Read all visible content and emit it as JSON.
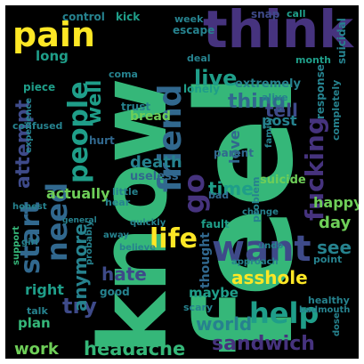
{
  "palette": {
    "background": "#000000",
    "frame": "#ffffff",
    "dark_purple": "#46337e",
    "purple": "#3e4a89",
    "blue": "#31688e",
    "teal": "#26828e",
    "green": "#1f9e89",
    "light_green": "#35b779",
    "lime": "#6ece58",
    "yellow": "#fde725"
  },
  "words": [
    {
      "text": "feel",
      "color": "#35b779"
    },
    {
      "text": "know",
      "color": "#35b779"
    },
    {
      "text": "think",
      "color": "#46337e"
    },
    {
      "text": "pain",
      "color": "#fde725"
    },
    {
      "text": "friend",
      "color": "#31688e"
    },
    {
      "text": "people",
      "color": "#1f9e89"
    },
    {
      "text": "need",
      "color": "#31688e"
    },
    {
      "text": "start",
      "color": "#31688e"
    },
    {
      "text": "want",
      "color": "#3e4a89"
    },
    {
      "text": "help",
      "color": "#1f9e89"
    },
    {
      "text": "life",
      "color": "#fde725"
    },
    {
      "text": "fucking",
      "color": "#46337e"
    },
    {
      "text": "go",
      "color": "#46337e"
    },
    {
      "text": "try",
      "color": "#3e4a89"
    },
    {
      "text": "live",
      "color": "#1f9e89"
    },
    {
      "text": "thing",
      "color": "#31688e"
    },
    {
      "text": "well",
      "color": "#1f9e89"
    },
    {
      "text": "attempt",
      "color": "#3e4a89"
    },
    {
      "text": "headache",
      "color": "#35b779"
    },
    {
      "text": "sandwich",
      "color": "#46337e"
    },
    {
      "text": "work",
      "color": "#6ece58"
    },
    {
      "text": "world",
      "color": "#26828e"
    },
    {
      "text": "asshole",
      "color": "#fde725"
    },
    {
      "text": "hate",
      "color": "#3e4a89"
    },
    {
      "text": "anymore",
      "color": "#26828e"
    },
    {
      "text": "time",
      "color": "#1f9e89"
    },
    {
      "text": "love",
      "color": "#31688e"
    },
    {
      "text": "death",
      "color": "#26828e"
    },
    {
      "text": "actually",
      "color": "#6ece58"
    },
    {
      "text": "tell",
      "color": "#3e4a89"
    },
    {
      "text": "see",
      "color": "#26828e"
    },
    {
      "text": "happy",
      "color": "#6ece58"
    },
    {
      "text": "day",
      "color": "#6ece58"
    },
    {
      "text": "plan",
      "color": "#35b779"
    },
    {
      "text": "right",
      "color": "#1f9e89"
    },
    {
      "text": "maybe",
      "color": "#1f9e89"
    },
    {
      "text": "thought",
      "color": "#31688e"
    },
    {
      "text": "post",
      "color": "#26828e"
    },
    {
      "text": "extremely",
      "color": "#26828e"
    },
    {
      "text": "long",
      "color": "#1f9e89"
    },
    {
      "text": "control",
      "color": "#26828e"
    },
    {
      "text": "kick",
      "color": "#1f9e89"
    },
    {
      "text": "week",
      "color": "#26828e"
    },
    {
      "text": "snap",
      "color": "#3e4a89"
    },
    {
      "text": "call",
      "color": "#1f9e89"
    },
    {
      "text": "suicidal",
      "color": "#26828e"
    },
    {
      "text": "escape",
      "color": "#26828e"
    },
    {
      "text": "lonely",
      "color": "#1f9e89"
    },
    {
      "text": "trust",
      "color": "#26828e"
    },
    {
      "text": "bread",
      "color": "#6ece58"
    },
    {
      "text": "useless",
      "color": "#31688e"
    },
    {
      "text": "parent",
      "color": "#31688e"
    },
    {
      "text": "suicide",
      "color": "#6ece58"
    },
    {
      "text": "hurt",
      "color": "#31688e"
    },
    {
      "text": "little",
      "color": "#26828e"
    },
    {
      "text": "hear",
      "color": "#26828e"
    },
    {
      "text": "bad",
      "color": "#31688e"
    },
    {
      "text": "fault",
      "color": "#1f9e89"
    },
    {
      "text": "coma",
      "color": "#26828e"
    },
    {
      "text": "deal",
      "color": "#26828e"
    },
    {
      "text": "alive",
      "color": "#26828e"
    },
    {
      "text": "month",
      "color": "#1f9e89"
    },
    {
      "text": "response",
      "color": "#26828e"
    },
    {
      "text": "completely",
      "color": "#26828e"
    },
    {
      "text": "piece",
      "color": "#1f9e89"
    },
    {
      "text": "confused",
      "color": "#26828e"
    },
    {
      "text": "experience",
      "color": "#26828e"
    },
    {
      "text": "probably",
      "color": "#26828e"
    },
    {
      "text": "believe",
      "color": "#26828e"
    },
    {
      "text": "quickly",
      "color": "#26828e"
    },
    {
      "text": "scary",
      "color": "#26828e"
    },
    {
      "text": "good",
      "color": "#26828e"
    },
    {
      "text": "talk",
      "color": "#26828e"
    },
    {
      "text": "support",
      "color": "#35b779"
    },
    {
      "text": "girl",
      "color": "#26828e"
    },
    {
      "text": "undo",
      "color": "#26828e"
    },
    {
      "text": "problem",
      "color": "#26828e"
    },
    {
      "text": "point",
      "color": "#26828e"
    },
    {
      "text": "healthy",
      "color": "#26828e"
    },
    {
      "text": "badmouth",
      "color": "#26828e"
    },
    {
      "text": "approach",
      "color": "#26828e"
    },
    {
      "text": "change",
      "color": "#26828e"
    },
    {
      "text": "family",
      "color": "#26828e"
    },
    {
      "text": "dose",
      "color": "#26828e"
    },
    {
      "text": "away",
      "color": "#26828e"
    },
    {
      "text": "general",
      "color": "#26828e"
    },
    {
      "text": "honest",
      "color": "#26828e"
    }
  ]
}
